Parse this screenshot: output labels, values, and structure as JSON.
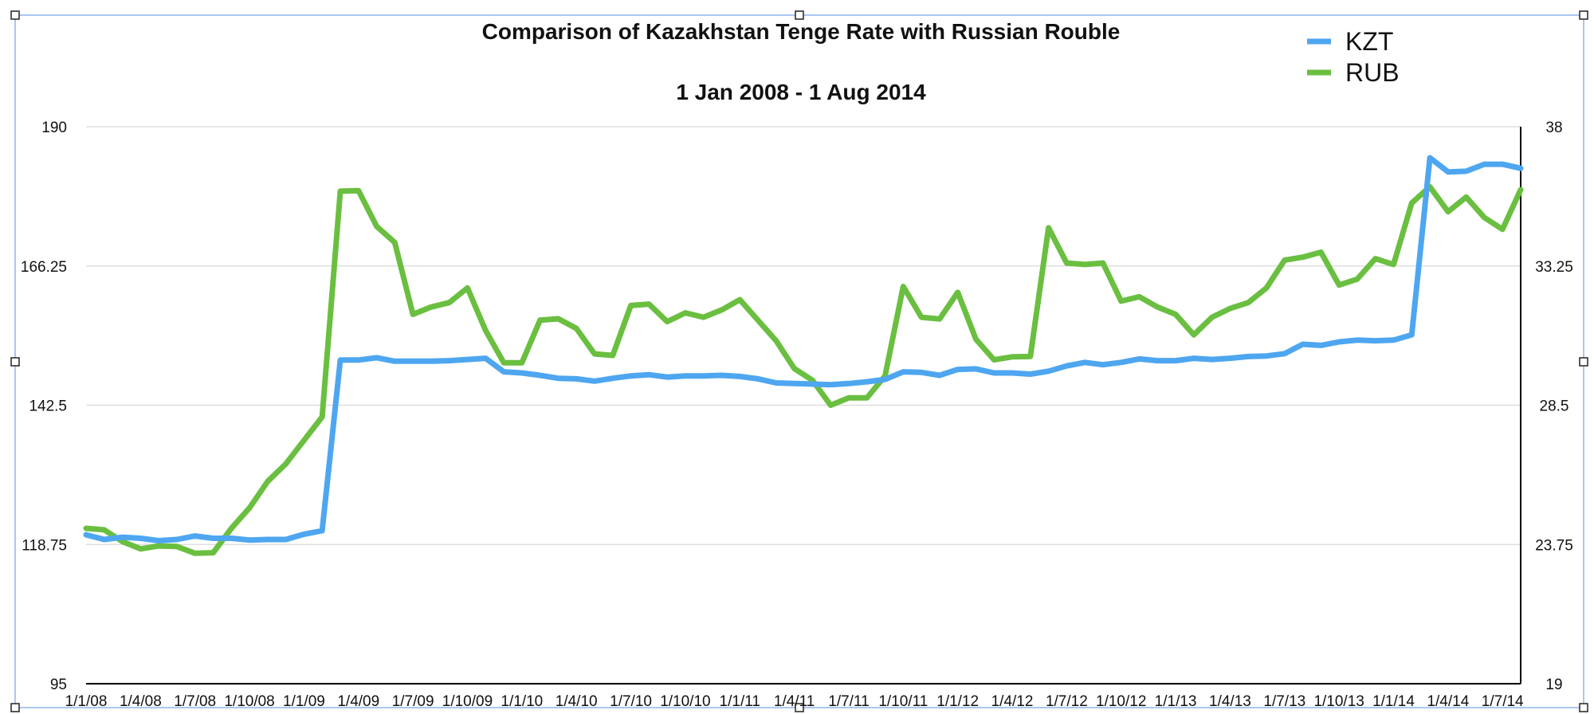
{
  "chart_data": {
    "type": "line",
    "title": "Comparison of Kazakhstan Tenge Rate with Russian Rouble",
    "subtitle": "1 Jan 2008 - 1 Aug 2014",
    "xlabel": "",
    "ylabel": "",
    "grid": true,
    "legend_position": "top-right",
    "y_left": {
      "lim": [
        95,
        190
      ],
      "ticks": [
        "95",
        "118.75",
        "142.5",
        "166.25",
        "190"
      ]
    },
    "y_right": {
      "lim": [
        19,
        38
      ],
      "ticks": [
        "19",
        "23.75",
        "28.5",
        "33.25",
        "38"
      ]
    },
    "x_ticks": [
      "1/1/08",
      "1/4/08",
      "1/7/08",
      "1/10/08",
      "1/1/09",
      "1/4/09",
      "1/7/09",
      "1/10/09",
      "1/1/10",
      "1/4/10",
      "1/7/10",
      "1/10/10",
      "1/1/11",
      "1/4/11",
      "1/7/11",
      "1/10/11",
      "1/1/12",
      "1/4/12",
      "1/7/12",
      "1/10/12",
      "1/1/13",
      "1/4/13",
      "1/7/13",
      "1/10/13",
      "1/1/14",
      "1/4/14",
      "1/7/14"
    ],
    "series": [
      {
        "name": "KZT",
        "axis": "left",
        "color": "#4ea6f0",
        "values": [
          120.4,
          119.6,
          120.0,
          119.8,
          119.4,
          119.6,
          120.2,
          119.8,
          119.8,
          119.5,
          119.6,
          119.6,
          120.5,
          121.1,
          150.2,
          150.2,
          150.6,
          150.0,
          150.0,
          150.0,
          150.1,
          150.3,
          150.5,
          148.2,
          148.0,
          147.6,
          147.1,
          147.0,
          146.6,
          147.1,
          147.5,
          147.7,
          147.3,
          147.5,
          147.5,
          147.6,
          147.4,
          147.0,
          146.3,
          146.2,
          146.1,
          146.0,
          146.2,
          146.5,
          146.9,
          148.2,
          148.1,
          147.6,
          148.6,
          148.7,
          148.0,
          148.0,
          147.8,
          148.3,
          149.2,
          149.8,
          149.4,
          149.8,
          150.4,
          150.1,
          150.1,
          150.5,
          150.3,
          150.5,
          150.8,
          150.9,
          151.3,
          152.9,
          152.7,
          153.3,
          153.6,
          153.5,
          153.6,
          154.5,
          184.7,
          182.3,
          182.4,
          183.6,
          183.6,
          182.9
        ]
      },
      {
        "name": "RUB",
        "axis": "right",
        "color": "#6abf40",
        "values": [
          24.3,
          24.25,
          23.85,
          23.6,
          23.7,
          23.68,
          23.45,
          23.47,
          24.3,
          25.0,
          25.9,
          26.5,
          27.3,
          28.1,
          35.8,
          35.82,
          34.6,
          34.05,
          31.6,
          31.85,
          32.0,
          32.5,
          31.05,
          29.95,
          29.95,
          31.4,
          31.45,
          31.12,
          30.25,
          30.2,
          31.9,
          31.95,
          31.35,
          31.65,
          31.5,
          31.75,
          32.1,
          31.4,
          30.7,
          29.75,
          29.35,
          28.5,
          28.75,
          28.75,
          29.5,
          32.55,
          31.5,
          31.44,
          32.35,
          30.75,
          30.05,
          30.15,
          30.16,
          34.55,
          33.35,
          33.3,
          33.35,
          32.05,
          32.2,
          31.85,
          31.6,
          30.9,
          31.5,
          31.8,
          32.0,
          32.5,
          33.45,
          33.55,
          33.72,
          32.6,
          32.8,
          33.5,
          33.3,
          35.4,
          35.95,
          35.1,
          35.6,
          34.9,
          34.5,
          35.85
        ]
      }
    ]
  },
  "legend": [
    {
      "label": "KZT",
      "color": "#4ea6f0"
    },
    {
      "label": "RUB",
      "color": "#6abf40"
    }
  ]
}
